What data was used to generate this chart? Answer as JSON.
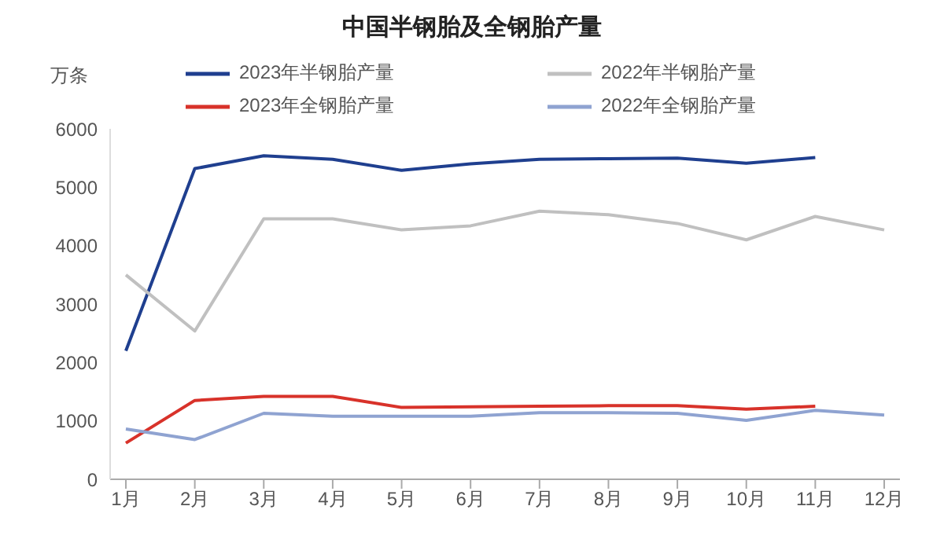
{
  "chart_data": {
    "type": "line",
    "title": "中国半钢胎及全钢胎产量",
    "ylabel": "万条",
    "categories": [
      "1月",
      "2月",
      "3月",
      "4月",
      "5月",
      "6月",
      "7月",
      "8月",
      "9月",
      "10月",
      "11月",
      "12月"
    ],
    "series": [
      {
        "name": "2023年半钢胎产量",
        "color": "#1f3f8f",
        "values": [
          2200,
          5320,
          5540,
          5480,
          5290,
          5400,
          5480,
          5490,
          5500,
          5410,
          5510,
          null
        ]
      },
      {
        "name": "2022年半钢胎产量",
        "color": "#c0c0c0",
        "values": [
          3500,
          2540,
          4460,
          4460,
          4270,
          4340,
          4590,
          4530,
          4380,
          4100,
          4500,
          4270
        ]
      },
      {
        "name": "2023年全钢胎产量",
        "color": "#d8322a",
        "values": [
          620,
          1350,
          1420,
          1420,
          1230,
          1240,
          1250,
          1260,
          1260,
          1200,
          1250,
          null
        ]
      },
      {
        "name": "2022年全钢胎产量",
        "color": "#8fa3d1",
        "values": [
          860,
          680,
          1130,
          1080,
          1080,
          1080,
          1140,
          1140,
          1130,
          1010,
          1180,
          1100
        ]
      }
    ],
    "ylim": [
      0,
      6000
    ],
    "yticks": [
      0,
      1000,
      2000,
      3000,
      4000,
      5000,
      6000
    ],
    "legend": "top",
    "marker": "none",
    "line_style": "solid"
  }
}
